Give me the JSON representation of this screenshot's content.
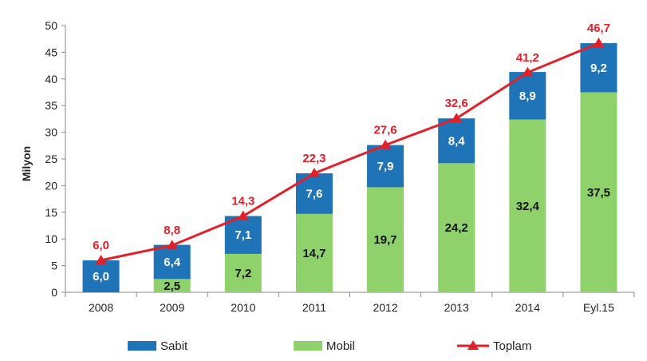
{
  "chart_data": {
    "type": "bar",
    "stacked": true,
    "title": "",
    "xlabel": "",
    "ylabel": "Milyon",
    "ylim": [
      0,
      50
    ],
    "yticks": [
      0,
      5,
      10,
      15,
      20,
      25,
      30,
      35,
      40,
      45,
      50
    ],
    "categories": [
      "2008",
      "2009",
      "2010",
      "2011",
      "2012",
      "2013",
      "2014",
      "Eyl.15"
    ],
    "series": [
      {
        "name": "Mobil",
        "kind": "bar",
        "color": "#8fd16a",
        "values": [
          0,
          2.5,
          7.2,
          14.7,
          19.7,
          24.2,
          32.4,
          37.5
        ],
        "labels": [
          "",
          "2,5",
          "7,2",
          "14,7",
          "19,7",
          "24,2",
          "32,4",
          "37,5"
        ]
      },
      {
        "name": "Sabit",
        "kind": "bar",
        "color": "#1f74b8",
        "values": [
          6.0,
          6.4,
          7.1,
          7.6,
          7.9,
          8.4,
          8.9,
          9.2
        ],
        "labels": [
          "6,0",
          "6,4",
          "7,1",
          "7,6",
          "7,9",
          "8,4",
          "8,9",
          "9,2"
        ]
      },
      {
        "name": "Toplam",
        "kind": "line",
        "color": "#e2202a",
        "values": [
          6.0,
          8.8,
          14.3,
          22.3,
          27.6,
          32.6,
          41.2,
          46.7
        ],
        "labels": [
          "6,0",
          "8,8",
          "14,3",
          "22,3",
          "27,6",
          "32,6",
          "41,2",
          "46,7"
        ]
      }
    ],
    "legend": {
      "position": "bottom",
      "items": [
        "Sabit",
        "Mobil",
        "Toplam"
      ]
    }
  }
}
